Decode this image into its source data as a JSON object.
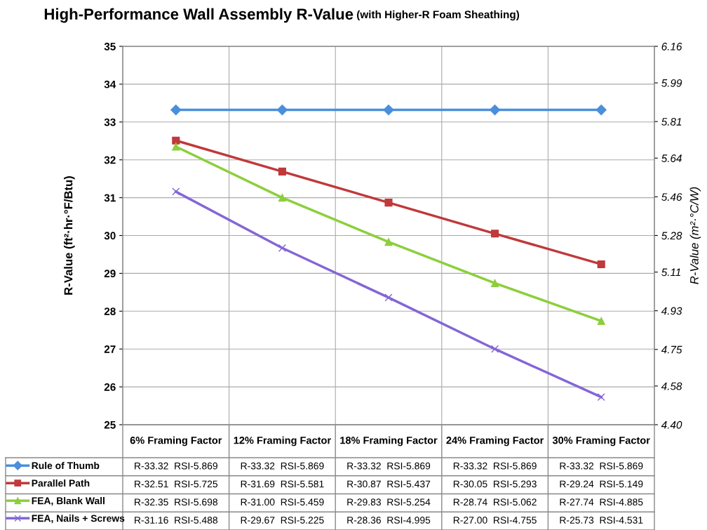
{
  "chart_data": {
    "type": "line",
    "title": "High-Performance Wall Assembly R-Value",
    "subtitle": "(with Higher-R Foam Sheathing)",
    "ylabel": "R-Value (ft²·hr·°F/Btu)",
    "y2label": "R-Value (m²·°C/W)",
    "categories": [
      "6% Framing Factor",
      "12% Framing Factor",
      "18% Framing Factor",
      "24% Framing Factor",
      "30% Framing Factor"
    ],
    "ylim": [
      25,
      35
    ],
    "yticks": [
      25,
      26,
      27,
      28,
      29,
      30,
      31,
      32,
      33,
      34,
      35
    ],
    "y2lim": [
      4.4,
      6.16
    ],
    "y2ticks": [
      {
        "value": 4.4,
        "label": "4.40"
      },
      4.58,
      4.75,
      4.93,
      5.11,
      5.28,
      5.46,
      5.64,
      5.81,
      5.99,
      6.16
    ],
    "grid": true,
    "legend": "bottom",
    "series": [
      {
        "name": "Rule of Thumb",
        "color": "#4a8fdc",
        "marker": "diamond",
        "values": [
          33.32,
          33.32,
          33.32,
          33.32,
          33.32
        ],
        "value_labels": [
          "R-33.32  RSI-5.869",
          "R-33.32  RSI-5.869",
          "R-33.32  RSI-5.869",
          "R-33.32  RSI-5.869",
          "R-33.32  RSI-5.869"
        ]
      },
      {
        "name": "Parallel Path",
        "color": "#c0393b",
        "marker": "square",
        "values": [
          32.51,
          31.69,
          30.87,
          30.05,
          29.24
        ],
        "value_labels": [
          "R-32.51  RSI-5.725",
          "R-31.69  RSI-5.581",
          "R-30.87  RSI-5.437",
          "R-30.05  RSI-5.293",
          "R-29.24  RSI-5.149"
        ]
      },
      {
        "name": "FEA, Blank Wall",
        "color": "#8ccf3c",
        "marker": "triangle",
        "values": [
          32.35,
          31.0,
          29.83,
          28.74,
          27.74
        ],
        "value_labels": [
          "R-32.35  RSI-5.698",
          "R-31.00  RSI-5.459",
          "R-29.83  RSI-5.254",
          "R-28.74  RSI-5.062",
          "R-27.74  RSI-4.885"
        ]
      },
      {
        "name": "FEA, Nails + Screws",
        "color": "#8466d6",
        "marker": "cross",
        "values": [
          31.16,
          29.67,
          28.36,
          27.0,
          25.73
        ],
        "value_labels": [
          "R-31.16  RSI-5.488",
          "R-29.67  RSI-5.225",
          "R-28.36  RSI-4.995",
          "R-27.00  RSI-4.755",
          "R-25.73  RSI-4.531"
        ]
      }
    ]
  }
}
